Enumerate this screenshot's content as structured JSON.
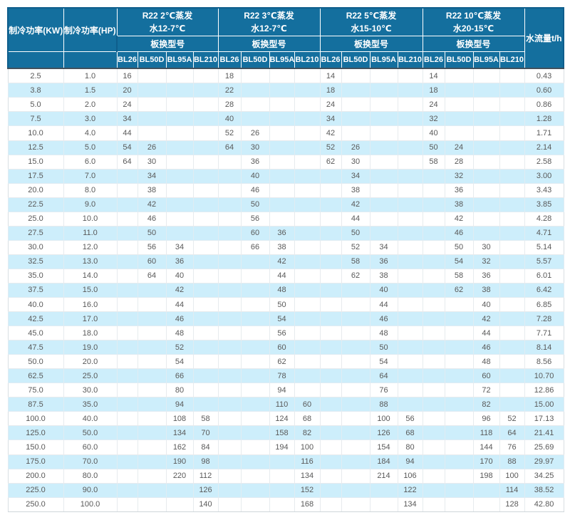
{
  "colors": {
    "header_bg": "#146f9e",
    "header_text": "#ffffff",
    "row_alt_bg": "#cdeefb",
    "row_bg": "#ffffff",
    "body_text": "#595959",
    "header_divider": "#42505c"
  },
  "table": {
    "header": {
      "kw_label": "制冷功率(KW)",
      "hp_label": "制冷功率(HP)",
      "flow_label": "水流量t/h",
      "model_row_label": "板换型号",
      "models": [
        "BL26",
        "BL50D",
        "BL95A",
        "BL210"
      ],
      "groups": [
        {
          "condition": "R22 2℃蒸发",
          "water": "水12-7℃"
        },
        {
          "condition": "R22 3℃蒸发",
          "water": "水12-7℃"
        },
        {
          "condition": "R22 5℃蒸发",
          "water": "水15-10℃"
        },
        {
          "condition": "R22 10℃蒸发",
          "water": "水20-15℃"
        }
      ]
    },
    "rows": [
      {
        "kw": "2.5",
        "hp": "1.0",
        "cells": [
          "16",
          "",
          "",
          "",
          "18",
          "",
          "",
          "",
          "14",
          "",
          "",
          "",
          "14",
          "",
          "",
          ""
        ],
        "flow": "0.43"
      },
      {
        "kw": "3.8",
        "hp": "1.5",
        "cells": [
          "20",
          "",
          "",
          "",
          "22",
          "",
          "",
          "",
          "18",
          "",
          "",
          "",
          "18",
          "",
          "",
          ""
        ],
        "flow": "0.60"
      },
      {
        "kw": "5.0",
        "hp": "2.0",
        "cells": [
          "24",
          "",
          "",
          "",
          "28",
          "",
          "",
          "",
          "24",
          "",
          "",
          "",
          "24",
          "",
          "",
          ""
        ],
        "flow": "0.86"
      },
      {
        "kw": "7.5",
        "hp": "3.0",
        "cells": [
          "34",
          "",
          "",
          "",
          "40",
          "",
          "",
          "",
          "34",
          "",
          "",
          "",
          "32",
          "",
          "",
          ""
        ],
        "flow": "1.28"
      },
      {
        "kw": "10.0",
        "hp": "4.0",
        "cells": [
          "44",
          "",
          "",
          "",
          "52",
          "26",
          "",
          "",
          "42",
          "",
          "",
          "",
          "40",
          "",
          "",
          ""
        ],
        "flow": "1.71"
      },
      {
        "kw": "12.5",
        "hp": "5.0",
        "cells": [
          "54",
          "26",
          "",
          "",
          "64",
          "30",
          "",
          "",
          "52",
          "26",
          "",
          "",
          "50",
          "24",
          "",
          ""
        ],
        "flow": "2.14"
      },
      {
        "kw": "15.0",
        "hp": "6.0",
        "cells": [
          "64",
          "30",
          "",
          "",
          "",
          "36",
          "",
          "",
          "62",
          "30",
          "",
          "",
          "58",
          "28",
          "",
          ""
        ],
        "flow": "2.58"
      },
      {
        "kw": "17.5",
        "hp": "7.0",
        "cells": [
          "",
          "34",
          "",
          "",
          "",
          "40",
          "",
          "",
          "",
          "34",
          "",
          "",
          "",
          "32",
          "",
          ""
        ],
        "flow": "3.00"
      },
      {
        "kw": "20.0",
        "hp": "8.0",
        "cells": [
          "",
          "38",
          "",
          "",
          "",
          "46",
          "",
          "",
          "",
          "38",
          "",
          "",
          "",
          "36",
          "",
          ""
        ],
        "flow": "3.43"
      },
      {
        "kw": "22.5",
        "hp": "9.0",
        "cells": [
          "",
          "42",
          "",
          "",
          "",
          "50",
          "",
          "",
          "",
          "42",
          "",
          "",
          "",
          "38",
          "",
          ""
        ],
        "flow": "3.85"
      },
      {
        "kw": "25.0",
        "hp": "10.0",
        "cells": [
          "",
          "46",
          "",
          "",
          "",
          "56",
          "",
          "",
          "",
          "44",
          "",
          "",
          "",
          "42",
          "",
          ""
        ],
        "flow": "4.28"
      },
      {
        "kw": "27.5",
        "hp": "11.0",
        "cells": [
          "",
          "50",
          "",
          "",
          "",
          "60",
          "36",
          "",
          "",
          "50",
          "",
          "",
          "",
          "46",
          "",
          ""
        ],
        "flow": "4.71"
      },
      {
        "kw": "30.0",
        "hp": "12.0",
        "cells": [
          "",
          "56",
          "34",
          "",
          "",
          "66",
          "38",
          "",
          "",
          "52",
          "34",
          "",
          "",
          "50",
          "30",
          ""
        ],
        "flow": "5.14"
      },
      {
        "kw": "32.5",
        "hp": "13.0",
        "cells": [
          "",
          "60",
          "36",
          "",
          "",
          "",
          "42",
          "",
          "",
          "58",
          "36",
          "",
          "",
          "54",
          "32",
          ""
        ],
        "flow": "5.57"
      },
      {
        "kw": "35.0",
        "hp": "14.0",
        "cells": [
          "",
          "64",
          "40",
          "",
          "",
          "",
          "44",
          "",
          "",
          "62",
          "38",
          "",
          "",
          "58",
          "36",
          ""
        ],
        "flow": "6.01"
      },
      {
        "kw": "37.5",
        "hp": "15.0",
        "cells": [
          "",
          "",
          "42",
          "",
          "",
          "",
          "48",
          "",
          "",
          "",
          "40",
          "",
          "",
          "62",
          "38",
          ""
        ],
        "flow": "6.42"
      },
      {
        "kw": "40.0",
        "hp": "16.0",
        "cells": [
          "",
          "",
          "44",
          "",
          "",
          "",
          "50",
          "",
          "",
          "",
          "44",
          "",
          "",
          "",
          "40",
          ""
        ],
        "flow": "6.85"
      },
      {
        "kw": "42.5",
        "hp": "17.0",
        "cells": [
          "",
          "",
          "46",
          "",
          "",
          "",
          "54",
          "",
          "",
          "",
          "46",
          "",
          "",
          "",
          "42",
          ""
        ],
        "flow": "7.28"
      },
      {
        "kw": "45.0",
        "hp": "18.0",
        "cells": [
          "",
          "",
          "48",
          "",
          "",
          "",
          "56",
          "",
          "",
          "",
          "48",
          "",
          "",
          "",
          "44",
          ""
        ],
        "flow": "7.71"
      },
      {
        "kw": "47.5",
        "hp": "19.0",
        "cells": [
          "",
          "",
          "52",
          "",
          "",
          "",
          "60",
          "",
          "",
          "",
          "50",
          "",
          "",
          "",
          "46",
          ""
        ],
        "flow": "8.14"
      },
      {
        "kw": "50.0",
        "hp": "20.0",
        "cells": [
          "",
          "",
          "54",
          "",
          "",
          "",
          "62",
          "",
          "",
          "",
          "54",
          "",
          "",
          "",
          "48",
          ""
        ],
        "flow": "8.56"
      },
      {
        "kw": "62.5",
        "hp": "25.0",
        "cells": [
          "",
          "",
          "66",
          "",
          "",
          "",
          "78",
          "",
          "",
          "",
          "64",
          "",
          "",
          "",
          "60",
          ""
        ],
        "flow": "10.70"
      },
      {
        "kw": "75.0",
        "hp": "30.0",
        "cells": [
          "",
          "",
          "80",
          "",
          "",
          "",
          "94",
          "",
          "",
          "",
          "76",
          "",
          "",
          "",
          "72",
          ""
        ],
        "flow": "12.86"
      },
      {
        "kw": "87.5",
        "hp": "35.0",
        "cells": [
          "",
          "",
          "94",
          "",
          "",
          "",
          "110",
          "60",
          "",
          "",
          "88",
          "",
          "",
          "",
          "82",
          ""
        ],
        "flow": "15.00"
      },
      {
        "kw": "100.0",
        "hp": "40.0",
        "cells": [
          "",
          "",
          "108",
          "58",
          "",
          "",
          "124",
          "68",
          "",
          "",
          "100",
          "56",
          "",
          "",
          "96",
          "52"
        ],
        "flow": "17.13"
      },
      {
        "kw": "125.0",
        "hp": "50.0",
        "cells": [
          "",
          "",
          "134",
          "70",
          "",
          "",
          "158",
          "82",
          "",
          "",
          "126",
          "68",
          "",
          "",
          "118",
          "64"
        ],
        "flow": "21.41"
      },
      {
        "kw": "150.0",
        "hp": "60.0",
        "cells": [
          "",
          "",
          "162",
          "84",
          "",
          "",
          "194",
          "100",
          "",
          "",
          "154",
          "80",
          "",
          "",
          "144",
          "76"
        ],
        "flow": "25.69"
      },
      {
        "kw": "175.0",
        "hp": "70.0",
        "cells": [
          "",
          "",
          "190",
          "98",
          "",
          "",
          "",
          "116",
          "",
          "",
          "184",
          "94",
          "",
          "",
          "170",
          "88"
        ],
        "flow": "29.97"
      },
      {
        "kw": "200.0",
        "hp": "80.0",
        "cells": [
          "",
          "",
          "220",
          "112",
          "",
          "",
          "",
          "134",
          "",
          "",
          "214",
          "106",
          "",
          "",
          "198",
          "100"
        ],
        "flow": "34.25"
      },
      {
        "kw": "225.0",
        "hp": "90.0",
        "cells": [
          "",
          "",
          "",
          "126",
          "",
          "",
          "",
          "152",
          "",
          "",
          "",
          "122",
          "",
          "",
          "",
          "114"
        ],
        "flow": "38.52"
      },
      {
        "kw": "250.0",
        "hp": "100.0",
        "cells": [
          "",
          "",
          "",
          "140",
          "",
          "",
          "",
          "168",
          "",
          "",
          "",
          "134",
          "",
          "",
          "",
          "128"
        ],
        "flow": "42.80"
      }
    ]
  }
}
